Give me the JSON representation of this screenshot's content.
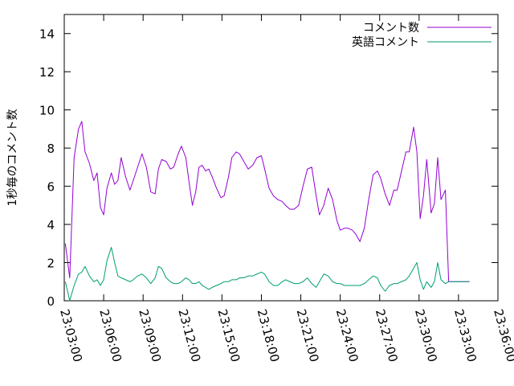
{
  "chart_data": {
    "type": "line",
    "title": "",
    "xlabel": "",
    "ylabel": "1秒毎のコメント数",
    "xlim": [
      "23:03:00",
      "23:36:00"
    ],
    "ylim": [
      0,
      15
    ],
    "x_ticks": [
      "23:03:00",
      "23:06:00",
      "23:09:00",
      "23:12:00",
      "23:15:00",
      "23:18:00",
      "23:21:00",
      "23:24:00",
      "23:27:00",
      "23:30:00",
      "23:33:00",
      "23:36:00"
    ],
    "y_ticks": [
      0,
      2,
      4,
      6,
      8,
      10,
      12,
      14
    ],
    "grid": false,
    "legend_position": "top-right",
    "x": [
      "23:03:05",
      "23:03:25",
      "23:03:45",
      "23:04:05",
      "23:04:20",
      "23:04:35",
      "23:04:55",
      "23:05:15",
      "23:05:30",
      "23:05:45",
      "23:06:00",
      "23:06:15",
      "23:06:35",
      "23:06:50",
      "23:07:05",
      "23:07:20",
      "23:07:40",
      "23:08:00",
      "23:08:15",
      "23:08:35",
      "23:08:55",
      "23:09:15",
      "23:09:35",
      "23:09:55",
      "23:10:10",
      "23:10:25",
      "23:10:45",
      "23:11:05",
      "23:11:20",
      "23:11:40",
      "23:11:55",
      "23:12:15",
      "23:12:30",
      "23:12:45",
      "23:13:00",
      "23:13:15",
      "23:13:30",
      "23:13:45",
      "23:14:00",
      "23:14:15",
      "23:14:35",
      "23:14:55",
      "23:15:10",
      "23:15:30",
      "23:15:45",
      "23:16:05",
      "23:16:20",
      "23:16:40",
      "23:17:00",
      "23:17:20",
      "23:17:40",
      "23:18:00",
      "23:18:15",
      "23:18:35",
      "23:18:55",
      "23:19:15",
      "23:19:35",
      "23:19:50",
      "23:20:10",
      "23:20:30",
      "23:20:50",
      "23:21:10",
      "23:21:30",
      "23:21:50",
      "23:22:10",
      "23:22:25",
      "23:22:45",
      "23:23:05",
      "23:23:25",
      "23:23:45",
      "23:24:00",
      "23:24:20",
      "23:24:35",
      "23:24:55",
      "23:25:10",
      "23:25:30",
      "23:25:50",
      "23:26:10",
      "23:26:30",
      "23:26:50",
      "23:27:05",
      "23:27:25",
      "23:27:45",
      "23:28:05",
      "23:28:20",
      "23:28:40",
      "23:29:00",
      "23:29:15",
      "23:29:35",
      "23:29:50",
      "23:30:05",
      "23:30:20",
      "23:30:35",
      "23:30:55",
      "23:31:10",
      "23:31:25",
      "23:31:40",
      "23:32:00",
      "23:32:15",
      "23:32:30",
      "23:32:45",
      "23:33:05",
      "23:33:20",
      "23:33:35",
      "23:33:50"
    ],
    "series": [
      {
        "name": "コメント数",
        "color": "#9400d3",
        "values": [
          3.0,
          1.2,
          7.5,
          9.0,
          9.4,
          7.8,
          7.2,
          6.3,
          6.7,
          4.9,
          4.5,
          5.9,
          6.7,
          6.1,
          6.3,
          7.5,
          6.5,
          5.8,
          6.3,
          7.0,
          7.7,
          7.0,
          5.7,
          5.6,
          6.9,
          7.4,
          7.3,
          6.9,
          7.0,
          7.7,
          8.1,
          7.5,
          6.2,
          5.0,
          5.7,
          7.0,
          7.1,
          6.8,
          6.9,
          6.5,
          5.9,
          5.4,
          5.5,
          6.5,
          7.5,
          7.8,
          7.7,
          7.3,
          6.9,
          7.1,
          7.5,
          7.6,
          6.9,
          5.9,
          5.5,
          5.3,
          5.2,
          5.0,
          4.8,
          4.8,
          5.0,
          6.0,
          6.9,
          7.0,
          5.5,
          4.5,
          5.0,
          5.9,
          5.3,
          4.2,
          3.7,
          3.8,
          3.8,
          3.7,
          3.5,
          3.1,
          3.8,
          5.3,
          6.6,
          6.8,
          6.4,
          5.6,
          5.0,
          5.8,
          5.8,
          6.8,
          7.8,
          7.8,
          9.1,
          7.8,
          4.3,
          5.5,
          7.4,
          4.6,
          5.1,
          7.5,
          5.3,
          5.8,
          1.0,
          1.0,
          1.0,
          1.0,
          1.0,
          1.0,
          1.0
        ]
      },
      {
        "name": "英語コメント",
        "color": "#009e73",
        "values": [
          1.0,
          0.0,
          0.8,
          1.4,
          1.5,
          1.8,
          1.3,
          1.0,
          1.1,
          0.8,
          1.1,
          2.1,
          2.8,
          2.0,
          1.3,
          1.2,
          1.1,
          1.0,
          1.1,
          1.3,
          1.4,
          1.2,
          0.9,
          1.2,
          1.8,
          1.7,
          1.2,
          1.0,
          0.9,
          0.9,
          1.0,
          1.2,
          1.1,
          0.9,
          0.9,
          1.0,
          0.8,
          0.7,
          0.6,
          0.7,
          0.8,
          0.9,
          1.0,
          1.0,
          1.1,
          1.1,
          1.2,
          1.2,
          1.3,
          1.3,
          1.4,
          1.5,
          1.4,
          1.0,
          0.8,
          0.8,
          1.0,
          1.1,
          1.0,
          0.9,
          0.9,
          1.0,
          1.2,
          0.9,
          0.7,
          1.0,
          1.4,
          1.3,
          1.0,
          0.9,
          0.9,
          0.8,
          0.8,
          0.8,
          0.8,
          0.8,
          0.9,
          1.1,
          1.3,
          1.2,
          0.8,
          0.5,
          0.8,
          0.9,
          0.9,
          1.0,
          1.1,
          1.3,
          1.7,
          2.0,
          1.1,
          0.6,
          1.0,
          0.7,
          1.0,
          2.0,
          1.1,
          0.9,
          1.0,
          1.0,
          1.0,
          1.0,
          1.0,
          1.0,
          1.0
        ]
      }
    ]
  }
}
